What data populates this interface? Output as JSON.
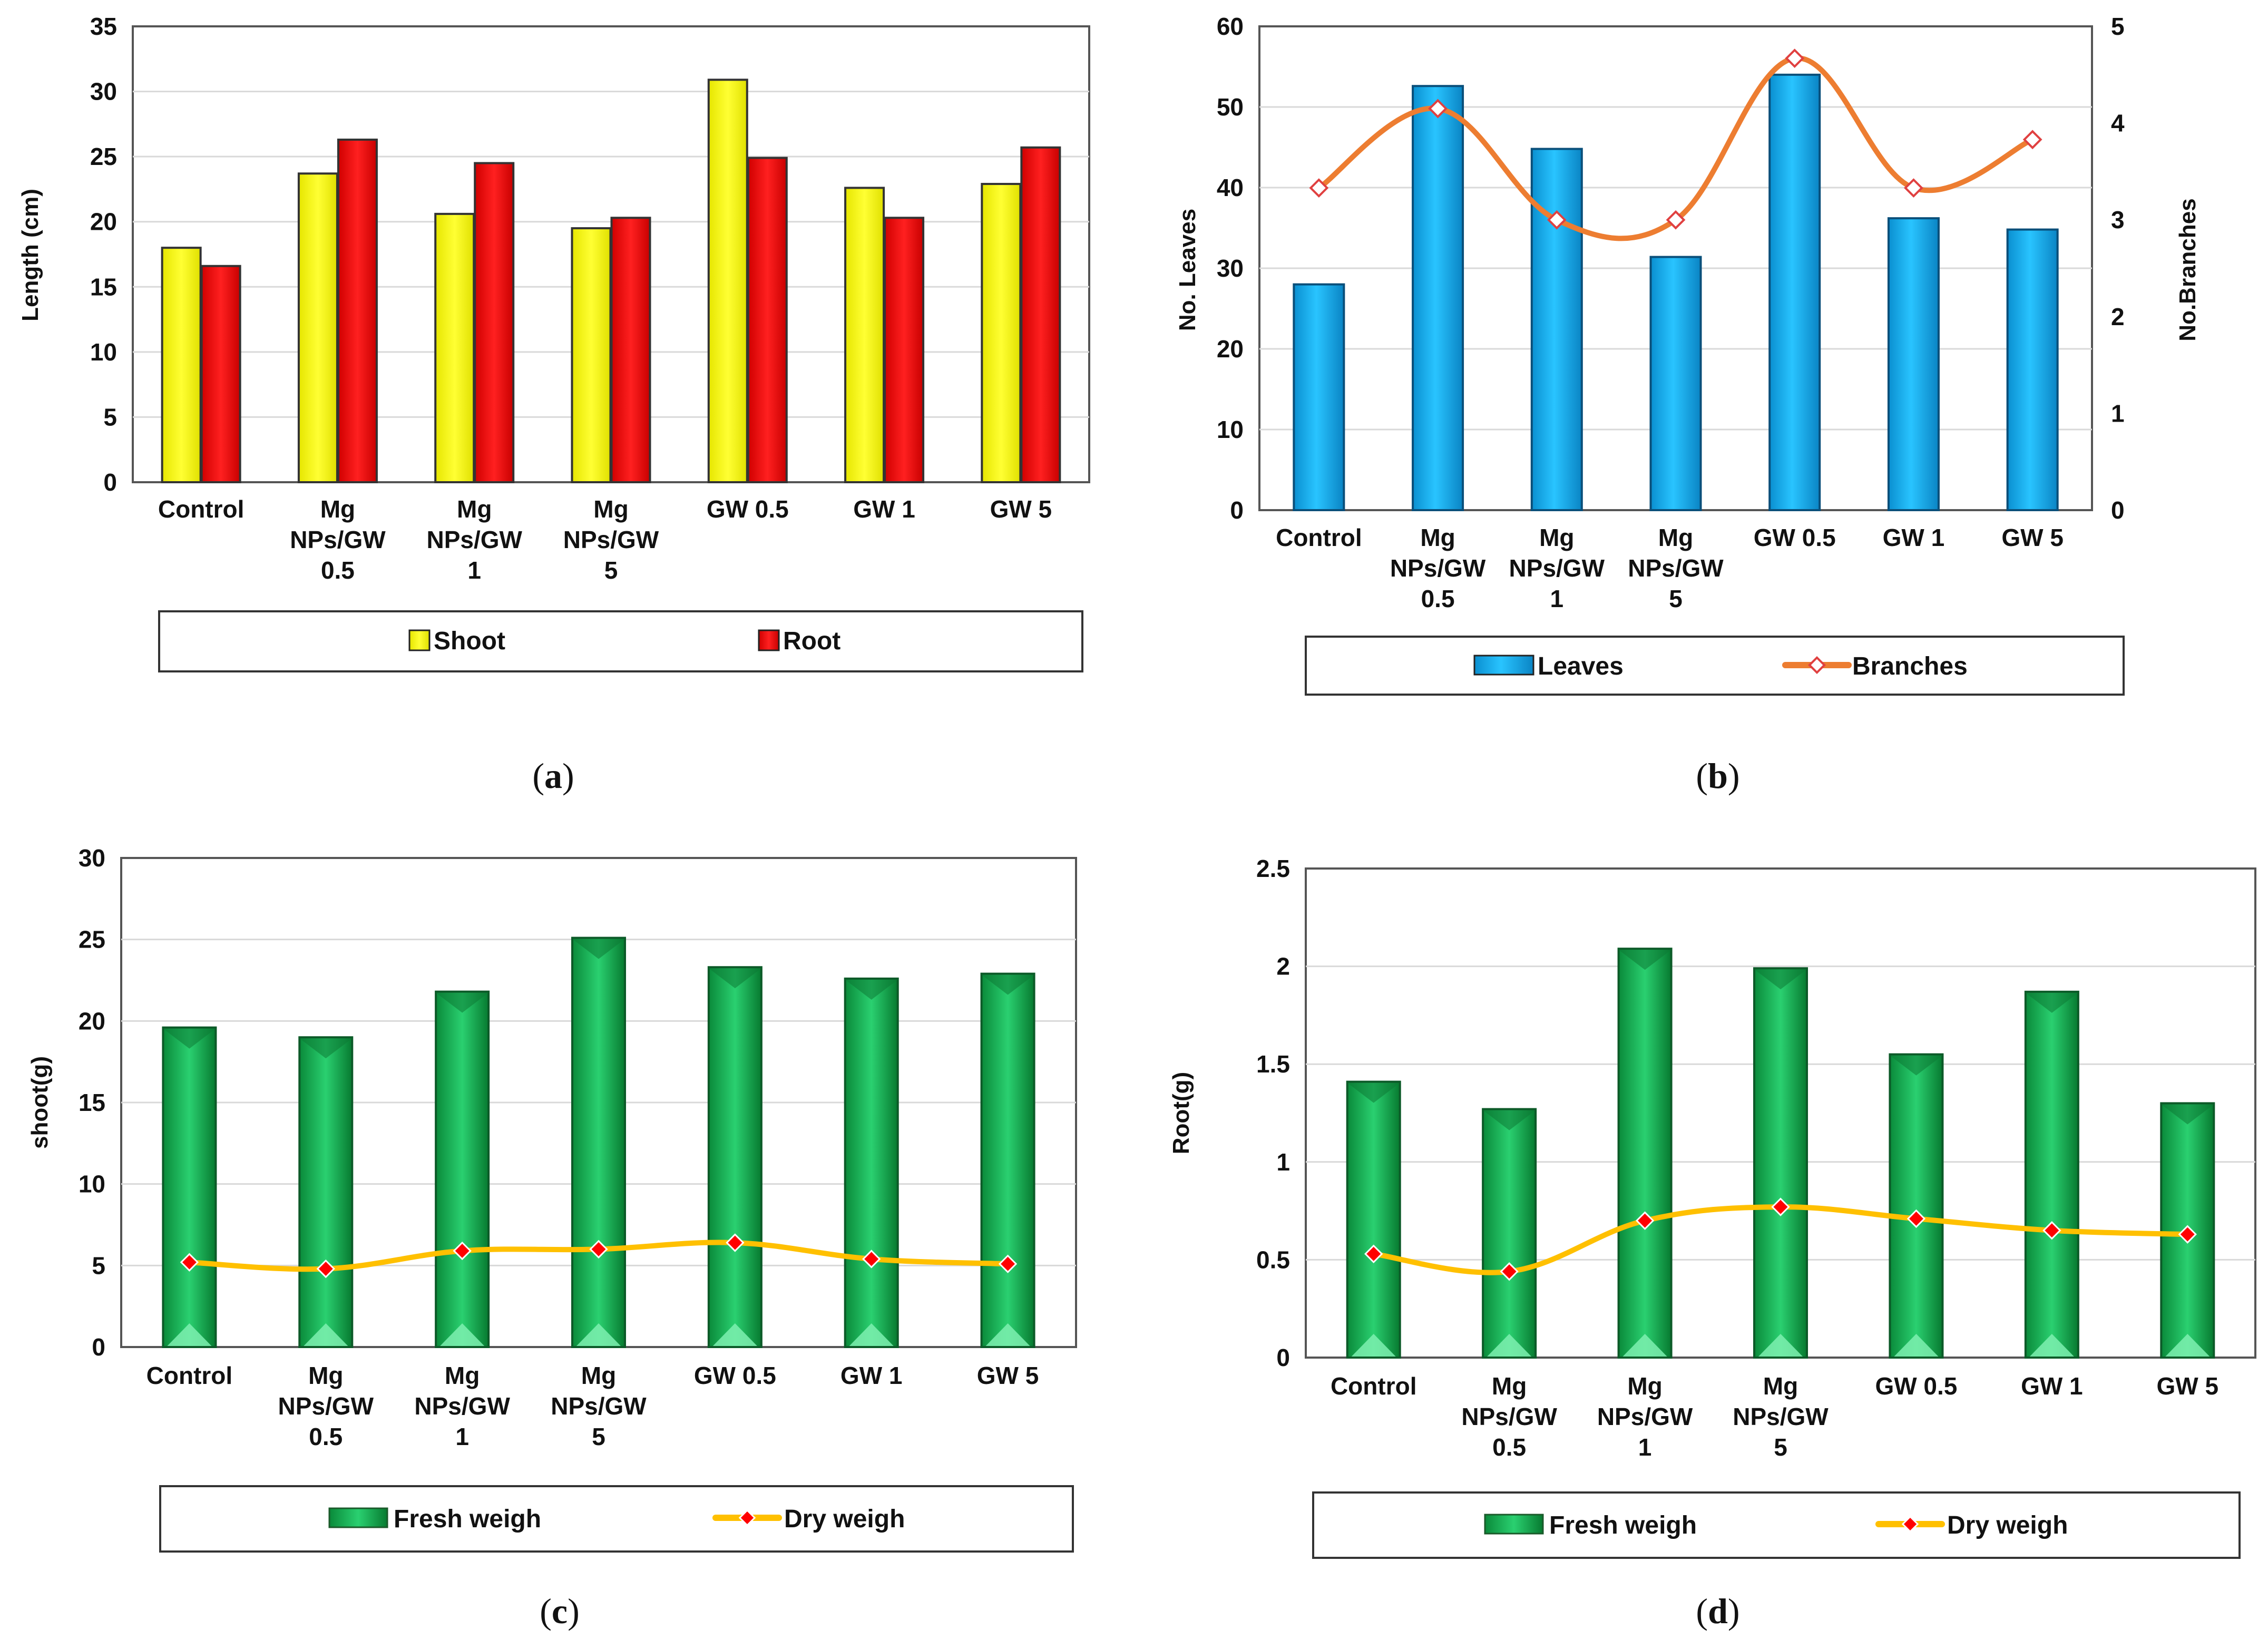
{
  "chart_data": [
    {
      "id": "a",
      "type": "bar",
      "panel_label": "a",
      "categories": [
        [
          "Control"
        ],
        [
          "Mg",
          "NPs/GW",
          "0.5"
        ],
        [
          "Mg",
          "NPs/GW",
          "1"
        ],
        [
          "Mg",
          "NPs/GW",
          "5"
        ],
        [
          "GW 0.5"
        ],
        [
          "GW 1"
        ],
        [
          "GW 5"
        ]
      ],
      "series": [
        {
          "name": "Shoot",
          "kind": "bar",
          "color": "#ffff00",
          "values": [
            18.0,
            23.7,
            20.6,
            19.5,
            30.9,
            22.6,
            22.9
          ]
        },
        {
          "name": "Root",
          "kind": "bar",
          "color": "#ff0000",
          "values": [
            16.6,
            26.3,
            24.5,
            20.3,
            24.9,
            20.3,
            25.7
          ]
        }
      ],
      "ylabel": "Length (cm)",
      "ylim": [
        0,
        35
      ],
      "yticks": [
        "0",
        "5",
        "10",
        "15",
        "20",
        "25",
        "30",
        "35"
      ],
      "grid": true,
      "legend": "bottom"
    },
    {
      "id": "b",
      "type": "bar",
      "panel_label": "b",
      "categories": [
        [
          "Control"
        ],
        [
          "Mg",
          "NPs/GW",
          "0.5"
        ],
        [
          "Mg",
          "NPs/GW",
          "1"
        ],
        [
          "Mg",
          "NPs/GW",
          "5"
        ],
        [
          "GW 0.5"
        ],
        [
          "GW 1"
        ],
        [
          "GW 5"
        ]
      ],
      "series": [
        {
          "name": "Leaves",
          "kind": "bar",
          "axis": "left",
          "color": "#00b0f0",
          "values": [
            28.0,
            52.6,
            44.8,
            31.4,
            54.0,
            36.2,
            34.8
          ]
        },
        {
          "name": "Branches",
          "kind": "line",
          "axis": "right",
          "color": "#ed7d31",
          "values": [
            3.33,
            4.15,
            3.0,
            3.0,
            4.67,
            3.33,
            3.83
          ]
        }
      ],
      "ylabel": "No. Leaves",
      "y2label": "No.Branches",
      "ylim": [
        0,
        60
      ],
      "y2lim": [
        0,
        5
      ],
      "yticks": [
        "0",
        "10",
        "20",
        "30",
        "40",
        "50",
        "60"
      ],
      "y2ticks": [
        "0",
        "1",
        "2",
        "3",
        "4",
        "5"
      ],
      "grid": true,
      "legend": "bottom"
    },
    {
      "id": "c",
      "type": "bar",
      "panel_label": "c",
      "categories": [
        [
          "Control"
        ],
        [
          "Mg",
          "NPs/GW",
          "0.5"
        ],
        [
          "Mg",
          "NPs/GW",
          "1"
        ],
        [
          "Mg",
          "NPs/GW",
          "5"
        ],
        [
          "GW 0.5"
        ],
        [
          "GW 1"
        ],
        [
          "GW 5"
        ]
      ],
      "series": [
        {
          "name": "Fresh weigh",
          "kind": "bar",
          "color": "#00b050",
          "values": [
            19.6,
            19.0,
            21.8,
            25.1,
            23.3,
            22.6,
            22.9
          ]
        },
        {
          "name": "Dry weigh",
          "kind": "line",
          "color": "#ffc000",
          "values": [
            5.2,
            4.8,
            5.9,
            6.0,
            6.4,
            5.4,
            5.1
          ]
        }
      ],
      "ylabel": "shoot(g)",
      "ylim": [
        0,
        30
      ],
      "yticks": [
        "0",
        "5",
        "10",
        "15",
        "20",
        "25",
        "30"
      ],
      "grid": true,
      "legend": "bottom"
    },
    {
      "id": "d",
      "type": "bar",
      "panel_label": "d",
      "categories": [
        [
          "Control"
        ],
        [
          "Mg",
          "NPs/GW",
          "0.5"
        ],
        [
          "Mg",
          "NPs/GW",
          "1"
        ],
        [
          "Mg",
          "NPs/GW",
          "5"
        ],
        [
          "GW 0.5"
        ],
        [
          "GW 1"
        ],
        [
          "GW 5"
        ]
      ],
      "series": [
        {
          "name": "Fresh weigh",
          "kind": "bar",
          "color": "#00b050",
          "values": [
            1.41,
            1.27,
            2.09,
            1.99,
            1.55,
            1.87,
            1.3
          ]
        },
        {
          "name": "Dry weigh",
          "kind": "line",
          "color": "#ffc000",
          "values": [
            0.53,
            0.44,
            0.7,
            0.77,
            0.71,
            0.65,
            0.63
          ]
        }
      ],
      "ylabel": "Root(g)",
      "ylim": [
        0,
        2.5
      ],
      "yticks": [
        "0",
        "0.5",
        "1",
        "1.5",
        "2",
        "2.5"
      ],
      "grid": true,
      "legend": "bottom"
    }
  ]
}
